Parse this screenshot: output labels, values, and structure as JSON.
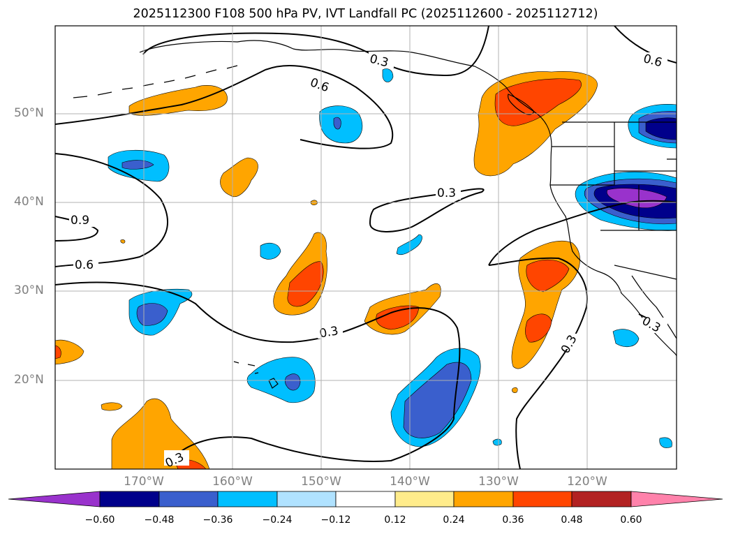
{
  "title": "2025112300 F108 500 hPa PV, IVT Landfall PC (2025112600 - 2025112712)",
  "map": {
    "lat_labels": [
      "50°N",
      "40°N",
      "30°N",
      "20°N"
    ],
    "lon_labels": [
      "170°W",
      "160°W",
      "150°W",
      "140°W",
      "130°W",
      "120°W"
    ],
    "contour_labels": [
      "0.3",
      "0.6",
      "0.6",
      "0.3",
      "0.9",
      "0.6",
      "0.3",
      "0.3",
      "0.3",
      "0.3"
    ],
    "fill_colors": {
      "neg_0_60": "#9932CC",
      "neg_0_48": "#00008B",
      "neg_0_36": "#3A5FCD",
      "neg_0_24": "#00BFFF",
      "neg_0_12": "#B0E2FF",
      "pos_0_12": "#FFEC8B",
      "pos_0_24": "#FFA500",
      "pos_0_36": "#FF4500",
      "pos_0_48": "#B22222",
      "pos_0_60": "#FF82AB"
    }
  },
  "colorbar": {
    "ticks": [
      "−0.60",
      "−0.48",
      "−0.36",
      "−0.24",
      "−0.12",
      "0.12",
      "0.24",
      "0.36",
      "0.48",
      "0.60"
    ],
    "colors": [
      "#9932CC",
      "#00008B",
      "#3A5FCD",
      "#00BFFF",
      "#B0E2FF",
      "#FFFFFF",
      "#FFEC8B",
      "#FFA500",
      "#FF4500",
      "#B22222",
      "#FF82AB"
    ]
  }
}
